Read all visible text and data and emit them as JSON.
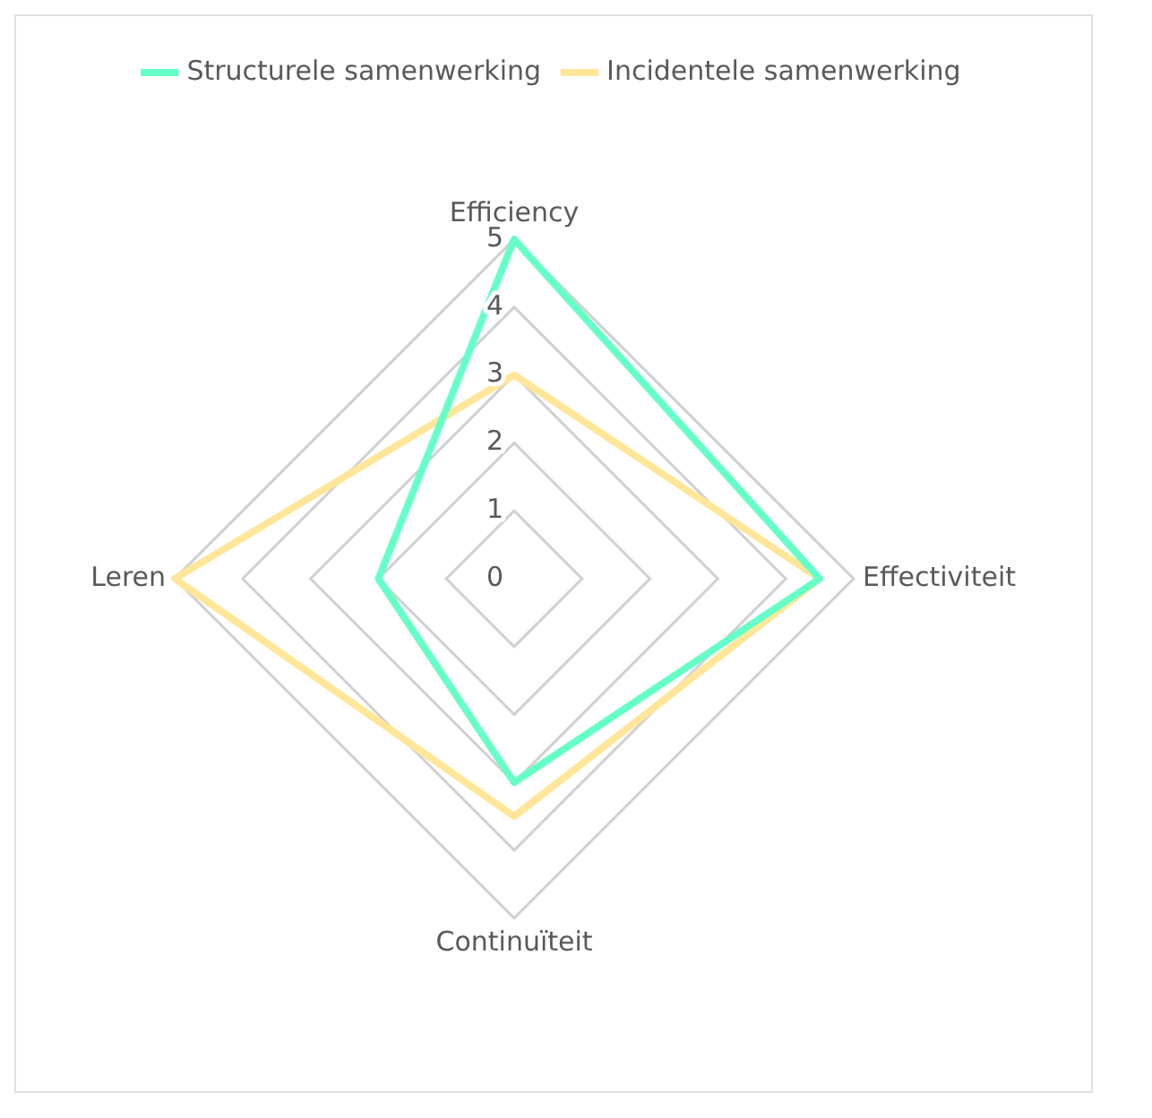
{
  "chart_data": {
    "type": "radar",
    "categories": [
      "Efficiency",
      "Effectiviteit",
      "Continuïteit",
      "Leren"
    ],
    "series": [
      {
        "name": "Structurele samenwerking",
        "color": "#66ffc8",
        "values": [
          5,
          4.5,
          3,
          2
        ]
      },
      {
        "name": "Incidentele samenwerking",
        "color": "#ffe699",
        "values": [
          3,
          4.5,
          3.5,
          5
        ]
      }
    ],
    "ylim": [
      0,
      5
    ],
    "yticks": [
      0,
      1,
      2,
      3,
      4,
      5
    ],
    "grid": true,
    "legend": "top",
    "marker": "none"
  }
}
